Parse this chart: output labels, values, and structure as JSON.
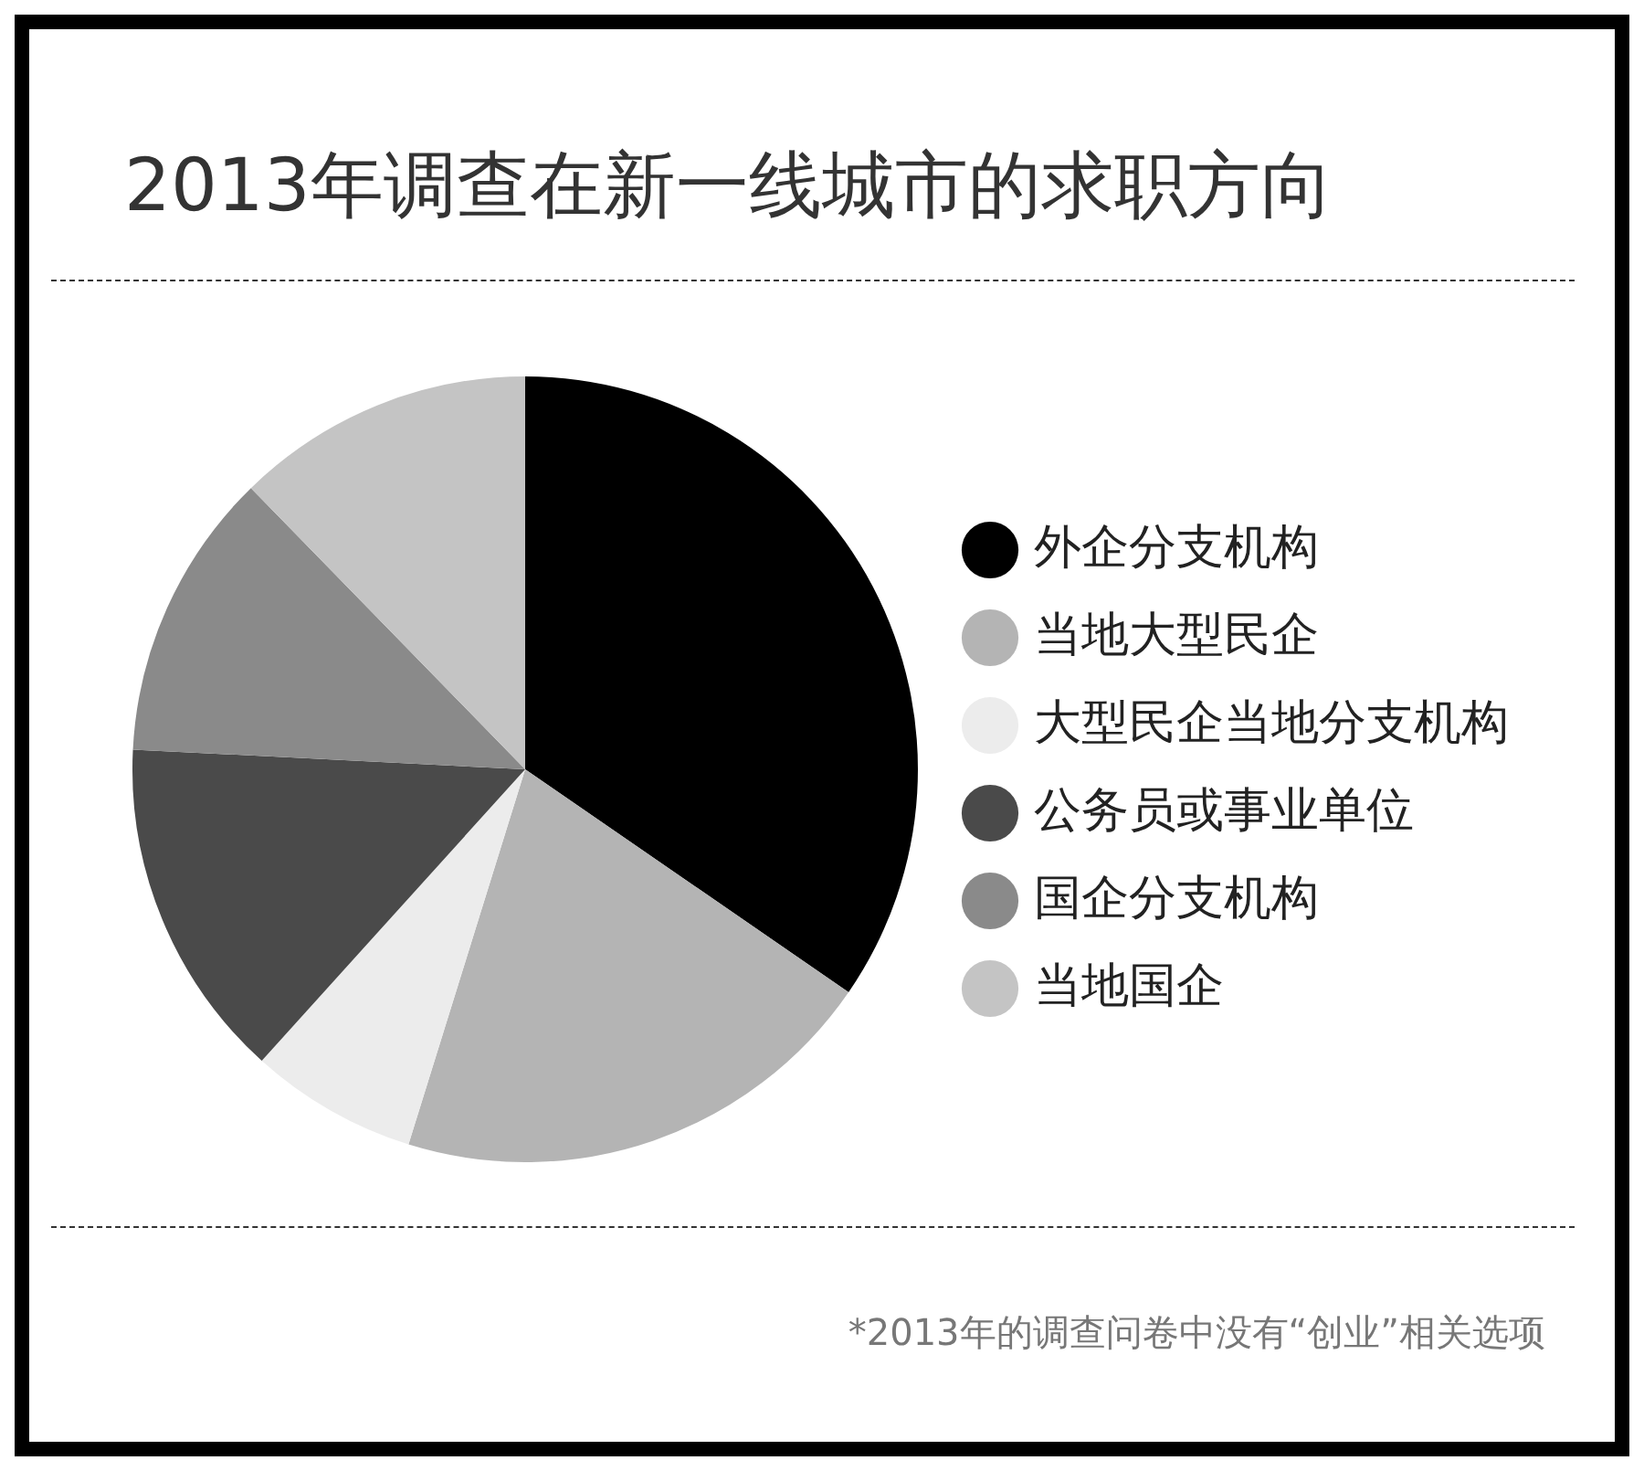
{
  "chart_data": {
    "type": "pie",
    "title": "2013年调查在新一线城市的求职方向",
    "categories": [
      "外企分支机构",
      "当地大型民企",
      "大型民企当地分支机构",
      "公务员或事业单位",
      "国企分支机构",
      "当地国企"
    ],
    "values": [
      34.6,
      20.2,
      6.9,
      14.1,
      11.9,
      12.3
    ],
    "colors": [
      "#000000",
      "#b4b4b4",
      "#ececec",
      "#4a4a4a",
      "#8a8a8a",
      "#c4c4c4"
    ],
    "legend": "right",
    "annotations": [
      "*2013年的调查问卷中没有“创业”相关选项"
    ]
  }
}
